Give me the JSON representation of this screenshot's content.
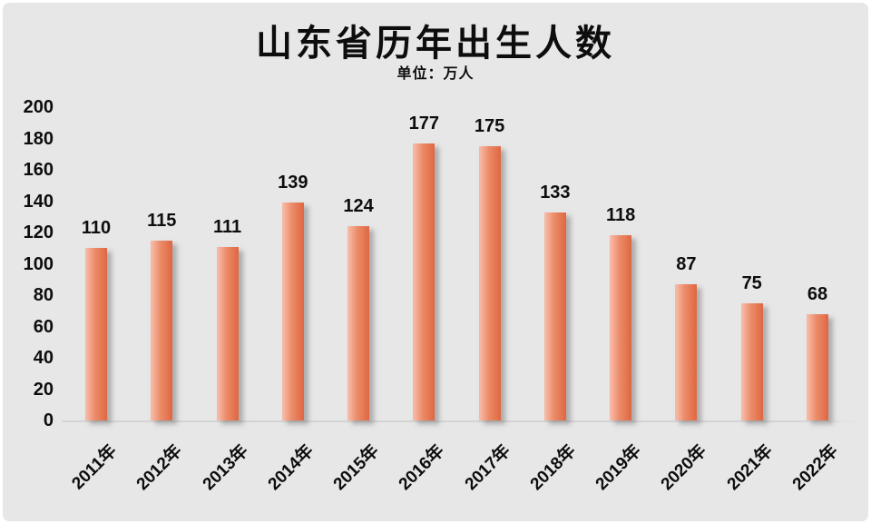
{
  "chart_data": {
    "type": "bar",
    "title": "山东省历年出生人数",
    "subtitle": "单位：万人",
    "categories": [
      "2011年",
      "2012年",
      "2013年",
      "2014年",
      "2015年",
      "2016年",
      "2017年",
      "2018年",
      "2019年",
      "2020年",
      "2021年",
      "2022年"
    ],
    "values": [
      110,
      115,
      111,
      139,
      124,
      177,
      175,
      133,
      118,
      87,
      75,
      68
    ],
    "xlabel": "",
    "ylabel": "",
    "ylim": [
      0,
      200
    ],
    "yticks": [
      0,
      20,
      40,
      60,
      80,
      100,
      120,
      140,
      160,
      180,
      200
    ],
    "grid": "off",
    "legend": "none",
    "data_labels": "above-bars",
    "colors": {
      "background": "#e7e7e7",
      "bar_light": "#f6b8a4",
      "bar_mid": "#ec8b68",
      "bar_dark": "#df6742",
      "text": "#0d0d0d",
      "axis_line": "#d4d4d4"
    }
  }
}
